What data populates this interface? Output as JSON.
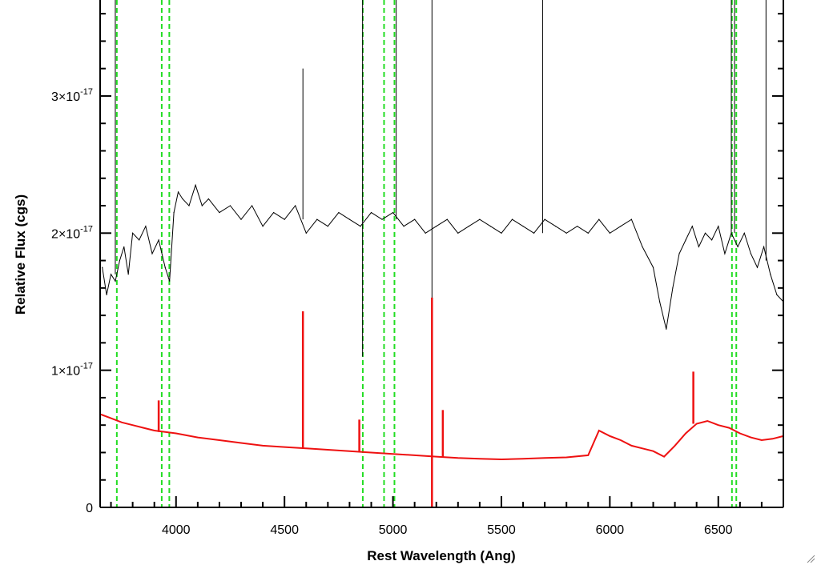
{
  "chart_data": {
    "type": "line",
    "title": "",
    "xlabel": "Rest Wavelength (Ang)",
    "ylabel": "Relative Flux (cgs)",
    "xlim": [
      3650,
      6800
    ],
    "ylim": [
      0,
      3.7e-17
    ],
    "x_ticks": [
      {
        "value": 4000,
        "label": "4000"
      },
      {
        "value": 4500,
        "label": "4500"
      },
      {
        "value": 5000,
        "label": "5000"
      },
      {
        "value": 5500,
        "label": "5500"
      },
      {
        "value": 6000,
        "label": "6000"
      },
      {
        "value": 6500,
        "label": "6500"
      }
    ],
    "y_ticks": [
      {
        "value": 0,
        "mantissa": "0",
        "exponent": ""
      },
      {
        "value": 1e-17,
        "mantissa": "1×10",
        "exponent": "-17"
      },
      {
        "value": 2e-17,
        "mantissa": "2×10",
        "exponent": "-17"
      },
      {
        "value": 3e-17,
        "mantissa": "3×10",
        "exponent": "-17"
      }
    ],
    "x_minor_step": 100,
    "y_minor_step": 2e-18,
    "grid": false,
    "legend": "none",
    "series": [
      {
        "role": "observed-spectrum",
        "color": "#000000",
        "x": [
          3660,
          3680,
          3700,
          3720,
          3740,
          3760,
          3780,
          3800,
          3830,
          3860,
          3890,
          3920,
          3950,
          3970,
          3990,
          4010,
          4030,
          4060,
          4090,
          4120,
          4150,
          4200,
          4250,
          4300,
          4350,
          4400,
          4450,
          4500,
          4550,
          4600,
          4650,
          4700,
          4750,
          4800,
          4850,
          4900,
          4950,
          5000,
          5050,
          5100,
          5150,
          5200,
          5250,
          5300,
          5350,
          5400,
          5450,
          5500,
          5550,
          5600,
          5650,
          5700,
          5750,
          5800,
          5850,
          5900,
          5950,
          6000,
          6050,
          6100,
          6150,
          6200,
          6230,
          6260,
          6290,
          6320,
          6350,
          6380,
          6410,
          6440,
          6470,
          6500,
          6530,
          6560,
          6590,
          6620,
          6650,
          6680,
          6710,
          6740,
          6770,
          6800
        ],
        "y": [
          1.75e-17,
          1.55e-17,
          1.7e-17,
          1.65e-17,
          1.8e-17,
          1.9e-17,
          1.7e-17,
          2e-17,
          1.95e-17,
          2.05e-17,
          1.85e-17,
          1.95e-17,
          1.75e-17,
          1.65e-17,
          2.15e-17,
          2.3e-17,
          2.25e-17,
          2.2e-17,
          2.35e-17,
          2.2e-17,
          2.25e-17,
          2.15e-17,
          2.2e-17,
          2.1e-17,
          2.2e-17,
          2.05e-17,
          2.15e-17,
          2.1e-17,
          2.2e-17,
          2e-17,
          2.1e-17,
          2.05e-17,
          2.15e-17,
          2.1e-17,
          2.05e-17,
          2.15e-17,
          2.1e-17,
          2.15e-17,
          2.05e-17,
          2.1e-17,
          2e-17,
          2.05e-17,
          2.1e-17,
          2e-17,
          2.05e-17,
          2.1e-17,
          2.05e-17,
          2e-17,
          2.1e-17,
          2.05e-17,
          2e-17,
          2.1e-17,
          2.05e-17,
          2e-17,
          2.05e-17,
          2e-17,
          2.1e-17,
          2e-17,
          2.05e-17,
          2.1e-17,
          1.9e-17,
          1.75e-17,
          1.5e-17,
          1.3e-17,
          1.6e-17,
          1.85e-17,
          1.95e-17,
          2.05e-17,
          1.9e-17,
          2e-17,
          1.95e-17,
          2.05e-17,
          1.85e-17,
          2e-17,
          1.9e-17,
          2e-17,
          1.85e-17,
          1.75e-17,
          1.9e-17,
          1.7e-17,
          1.55e-17,
          1.5e-17
        ]
      },
      {
        "role": "model-continuum",
        "color": "#ee1111",
        "x": [
          3650,
          3700,
          3750,
          3800,
          3850,
          3900,
          3950,
          4000,
          4100,
          4200,
          4300,
          4400,
          4500,
          4600,
          4700,
          4800,
          4900,
          5000,
          5100,
          5200,
          5300,
          5400,
          5500,
          5600,
          5700,
          5800,
          5900,
          5950,
          6000,
          6050,
          6100,
          6150,
          6200,
          6250,
          6300,
          6350,
          6400,
          6450,
          6500,
          6550,
          6600,
          6650,
          6700,
          6750,
          6800
        ],
        "y": [
          6.8e-18,
          6.5e-18,
          6.2e-18,
          6e-18,
          5.8e-18,
          5.6e-18,
          5.5e-18,
          5.4e-18,
          5.1e-18,
          4.9e-18,
          4.7e-18,
          4.5e-18,
          4.4e-18,
          4.3e-18,
          4.2e-18,
          4.1e-18,
          4e-18,
          3.9e-18,
          3.8e-18,
          3.7e-18,
          3.6e-18,
          3.55e-18,
          3.5e-18,
          3.55e-18,
          3.6e-18,
          3.65e-18,
          3.8e-18,
          5.6e-18,
          5.2e-18,
          4.9e-18,
          4.5e-18,
          4.3e-18,
          4.1e-18,
          3.7e-18,
          4.5e-18,
          5.4e-18,
          6.1e-18,
          6.3e-18,
          6e-18,
          5.8e-18,
          5.4e-18,
          5.1e-18,
          4.9e-18,
          5e-18,
          5.2e-18
        ]
      }
    ],
    "spikes": [
      {
        "x": 3720,
        "y_from": 1.7e-17,
        "y_to": 3.7e-17,
        "color": "#000000"
      },
      {
        "x": 4585,
        "y_from": 2.1e-17,
        "y_to": 3.2e-17,
        "color": "#000000"
      },
      {
        "x": 4860,
        "y_from": 1.1e-17,
        "y_to": 3.7e-17,
        "color": "#000000"
      },
      {
        "x": 5015,
        "y_from": 2.1e-17,
        "y_to": 3.7e-17,
        "color": "#000000"
      },
      {
        "x": 5180,
        "y_from": 0,
        "y_to": 3.7e-17,
        "color": "#000000"
      },
      {
        "x": 5690,
        "y_from": 2e-17,
        "y_to": 3.7e-17,
        "color": "#000000"
      },
      {
        "x": 6560,
        "y_from": 2e-17,
        "y_to": 3.7e-17,
        "color": "#000000"
      },
      {
        "x": 6575,
        "y_from": 2e-17,
        "y_to": 3.7e-17,
        "color": "#000000"
      },
      {
        "x": 6720,
        "y_from": 1.8e-17,
        "y_to": 3.7e-17,
        "color": "#000000"
      },
      {
        "x": 3920,
        "y_from": 5.5e-18,
        "y_to": 7.8e-18,
        "color": "#ee1111"
      },
      {
        "x": 4585,
        "y_from": 4.3e-18,
        "y_to": 1.43e-17,
        "color": "#ee1111"
      },
      {
        "x": 5180,
        "y_from": 0,
        "y_to": 1.53e-17,
        "color": "#ee1111"
      },
      {
        "x": 5230,
        "y_from": 3.7e-18,
        "y_to": 7.1e-18,
        "color": "#ee1111"
      },
      {
        "x": 4845,
        "y_from": 4.1e-18,
        "y_to": 6.4e-18,
        "color": "#ee1111"
      },
      {
        "x": 6385,
        "y_from": 6.1e-18,
        "y_to": 9.9e-18,
        "color": "#ee1111"
      }
    ],
    "reference_lines": [
      {
        "x": 3727,
        "color": "#22dd22",
        "style": "dashed"
      },
      {
        "x": 3934,
        "color": "#22dd22",
        "style": "dashed"
      },
      {
        "x": 3969,
        "color": "#22dd22",
        "style": "dashed"
      },
      {
        "x": 4861,
        "color": "#22dd22",
        "style": "dashed"
      },
      {
        "x": 4959,
        "color": "#22dd22",
        "style": "dashed"
      },
      {
        "x": 5007,
        "color": "#22dd22",
        "style": "dashed"
      },
      {
        "x": 6563,
        "color": "#22dd22",
        "style": "dashed"
      },
      {
        "x": 6583,
        "color": "#22dd22",
        "style": "dashed"
      }
    ]
  }
}
